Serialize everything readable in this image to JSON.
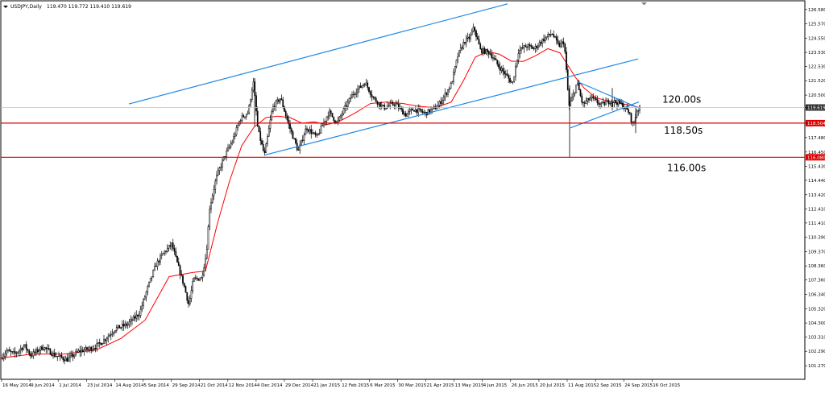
{
  "header": {
    "symbol_label": "USDJPY,Daily",
    "ohlc_readout": "119.470 119.772 119.410 119.619"
  },
  "colors": {
    "background": "#ffffff",
    "candle": "#000000",
    "moving_average": "#ff0000",
    "channel_lines": "#1e88e5",
    "horizontal_lines": "#e00000",
    "price_tag_bg": "#e00000"
  },
  "chart_data": {
    "type": "candlestick",
    "title": "USDJPY,Daily",
    "price_axis": {
      "ylim": [
        100.3,
        127.2
      ],
      "ticks": [
        "126.580",
        "125.570",
        "124.550",
        "123.530",
        "122.530",
        "121.520",
        "120.500",
        "119.619",
        "118.504",
        "117.480",
        "116.450",
        "115.430",
        "114.440",
        "113.420",
        "112.410",
        "111.410",
        "110.390",
        "109.370",
        "108.360",
        "107.360",
        "106.340",
        "105.320",
        "104.300",
        "103.310",
        "102.290",
        "101.270"
      ]
    },
    "time_axis": {
      "ticks": [
        "16 May 2014",
        "9 Jun 2014",
        "1 Jul 2014",
        "23 Jul 2014",
        "14 Aug 2014",
        "5 Sep 2014",
        "29 Sep 2014",
        "21 Oct 2014",
        "12 Nov 2014",
        "4 Dec 2014",
        "29 Dec 2014",
        "21 Jan 2015",
        "12 Feb 2015",
        "6 Mar 2015",
        "30 Mar 2015",
        "21 Apr 2015",
        "13 May 2015",
        "4 Jun 2015",
        "26 Jun 2015",
        "20 Jul 2015",
        "11 Aug 2015",
        "2 Sep 2015",
        "24 Sep 2015",
        "16 Oct 2015"
      ]
    },
    "price_path": [
      [
        0,
        101.6
      ],
      [
        10,
        102.3
      ],
      [
        20,
        102.1
      ],
      [
        32,
        102.7
      ],
      [
        40,
        102.0
      ],
      [
        55,
        102.6
      ],
      [
        70,
        102.0
      ],
      [
        85,
        101.7
      ],
      [
        100,
        102.3
      ],
      [
        115,
        102.5
      ],
      [
        125,
        102.8
      ],
      [
        135,
        103.3
      ],
      [
        145,
        103.9
      ],
      [
        160,
        104.2
      ],
      [
        175,
        105.0
      ],
      [
        185,
        106.8
      ],
      [
        195,
        108.4
      ],
      [
        205,
        109.3
      ],
      [
        215,
        109.9
      ],
      [
        222,
        108.5
      ],
      [
        230,
        107.0
      ],
      [
        236,
        105.6
      ],
      [
        242,
        107.4
      ],
      [
        252,
        107.5
      ],
      [
        258,
        109.3
      ],
      [
        262,
        112.5
      ],
      [
        270,
        114.6
      ],
      [
        280,
        116.1
      ],
      [
        290,
        117.2
      ],
      [
        300,
        118.8
      ],
      [
        310,
        119.3
      ],
      [
        316,
        121.5
      ],
      [
        322,
        118.0
      ],
      [
        330,
        116.2
      ],
      [
        340,
        119.6
      ],
      [
        350,
        120.3
      ],
      [
        360,
        118.4
      ],
      [
        372,
        116.5
      ],
      [
        382,
        118.2
      ],
      [
        395,
        117.5
      ],
      [
        410,
        119.3
      ],
      [
        420,
        118.5
      ],
      [
        430,
        119.6
      ],
      [
        440,
        120.6
      ],
      [
        455,
        121.4
      ],
      [
        465,
        120.3
      ],
      [
        478,
        119.6
      ],
      [
        492,
        119.9
      ],
      [
        505,
        119.1
      ],
      [
        515,
        119.5
      ],
      [
        530,
        119.2
      ],
      [
        545,
        119.7
      ],
      [
        555,
        120.6
      ],
      [
        562,
        121.3
      ],
      [
        570,
        123.3
      ],
      [
        578,
        124.3
      ],
      [
        585,
        124.6
      ],
      [
        590,
        125.3
      ],
      [
        598,
        123.7
      ],
      [
        610,
        123.5
      ],
      [
        620,
        122.6
      ],
      [
        630,
        121.9
      ],
      [
        638,
        121.3
      ],
      [
        645,
        123.6
      ],
      [
        655,
        124.0
      ],
      [
        665,
        123.8
      ],
      [
        675,
        124.4
      ],
      [
        687,
        124.9
      ],
      [
        695,
        124.0
      ],
      [
        702,
        124.3
      ],
      [
        708,
        119.7
      ],
      [
        714,
        120.6
      ],
      [
        718,
        121.4
      ],
      [
        725,
        119.8
      ],
      [
        735,
        120.3
      ],
      [
        748,
        119.8
      ],
      [
        760,
        120.1
      ],
      [
        772,
        119.9
      ],
      [
        782,
        119.3
      ],
      [
        788,
        118.3
      ],
      [
        792,
        119.4
      ],
      [
        796,
        119.6
      ]
    ],
    "moving_average": [
      [
        0,
        101.8
      ],
      [
        40,
        102.1
      ],
      [
        80,
        102.1
      ],
      [
        120,
        102.4
      ],
      [
        150,
        103.2
      ],
      [
        180,
        104.5
      ],
      [
        210,
        107.6
      ],
      [
        240,
        107.9
      ],
      [
        255,
        108.0
      ],
      [
        270,
        111.4
      ],
      [
        285,
        114.4
      ],
      [
        300,
        116.9
      ],
      [
        315,
        118.2
      ],
      [
        330,
        118.9
      ],
      [
        345,
        119.0
      ],
      [
        360,
        118.9
      ],
      [
        375,
        118.5
      ],
      [
        390,
        118.6
      ],
      [
        405,
        118.4
      ],
      [
        420,
        118.6
      ],
      [
        440,
        119.2
      ],
      [
        460,
        119.9
      ],
      [
        480,
        120.0
      ],
      [
        500,
        119.9
      ],
      [
        520,
        119.7
      ],
      [
        540,
        119.6
      ],
      [
        560,
        120.0
      ],
      [
        575,
        121.5
      ],
      [
        590,
        123.2
      ],
      [
        605,
        123.6
      ],
      [
        620,
        123.4
      ],
      [
        635,
        122.9
      ],
      [
        650,
        122.9
      ],
      [
        665,
        123.3
      ],
      [
        680,
        123.8
      ],
      [
        695,
        123.5
      ],
      [
        705,
        122.6
      ],
      [
        715,
        121.7
      ],
      [
        725,
        121.0
      ],
      [
        740,
        120.3
      ],
      [
        760,
        120.0
      ],
      [
        780,
        119.8
      ],
      [
        795,
        119.6
      ]
    ],
    "trend_lines": [
      {
        "name": "channel upper",
        "from": [
          160,
          119.87
        ],
        "to": [
          630,
          126.98
        ]
      },
      {
        "name": "channel lower",
        "from": [
          328,
          116.23
        ],
        "to": [
          792,
          123.07
        ]
      },
      {
        "name": "triangle upper",
        "from": [
          717,
          121.45
        ],
        "to": [
          793,
          119.58
        ]
      },
      {
        "name": "triangle lower",
        "from": [
          708,
          118.17
        ],
        "to": [
          793,
          120.01
        ]
      }
    ],
    "levels": [
      {
        "label": "120.00s",
        "price": 119.619,
        "tag": "119.619",
        "line_style": "gray"
      },
      {
        "label": "118.50s",
        "price": 118.504,
        "tag": "118.504",
        "line_style": "red"
      },
      {
        "label": "116.00s",
        "price": 116.08,
        "tag": "116.080",
        "line_style": "red"
      }
    ],
    "grid": false,
    "legend": "none"
  }
}
